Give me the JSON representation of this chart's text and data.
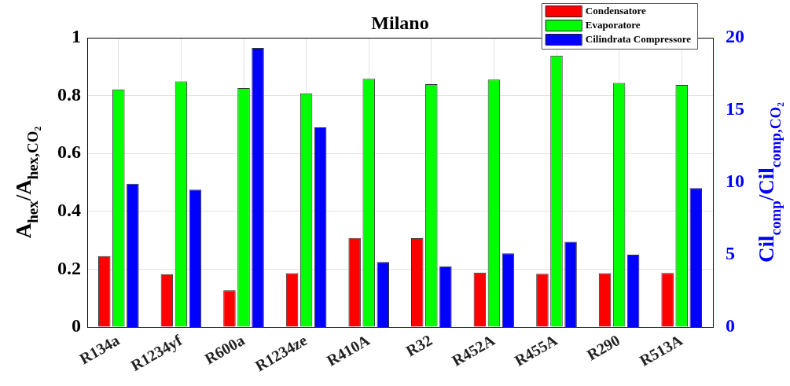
{
  "chart_data": {
    "type": "bar",
    "title": "Milano",
    "categories": [
      "R134a",
      "R1234yf",
      "R600a",
      "R1234ze",
      "R410A",
      "R32",
      "R452A",
      "R455A",
      "R290",
      "R513A"
    ],
    "series": [
      {
        "name": "Condensatore",
        "color": "#ff0000",
        "values": [
          0.245,
          0.183,
          0.127,
          0.186,
          0.308,
          0.307,
          0.188,
          0.184,
          0.186,
          0.187
        ]
      },
      {
        "name": "Evaporatore",
        "color": "#00ff00",
        "values": [
          0.821,
          0.849,
          0.826,
          0.808,
          0.858,
          0.84,
          0.855,
          0.938,
          0.844,
          0.837
        ]
      },
      {
        "name": "Cilindrata Compressore",
        "color": "#0000ff",
        "axis": "y2",
        "values": [
          9.9,
          9.5,
          19.3,
          13.8,
          4.5,
          4.2,
          5.1,
          5.9,
          5.0,
          9.6
        ]
      }
    ],
    "ylabel": "A$_{hex}$/A$_{hex,CO₂}$",
    "y2label": "Cil$_{comp}$/Cil$_{comp,CO₂}$",
    "ylim": [
      0,
      1
    ],
    "yticks": [
      0,
      0.2,
      0.4,
      0.6,
      0.8,
      1
    ],
    "y2lim": [
      0,
      20
    ],
    "y2ticks": [
      0,
      5,
      10,
      15,
      20
    ],
    "grid": true,
    "legend": "top right"
  }
}
